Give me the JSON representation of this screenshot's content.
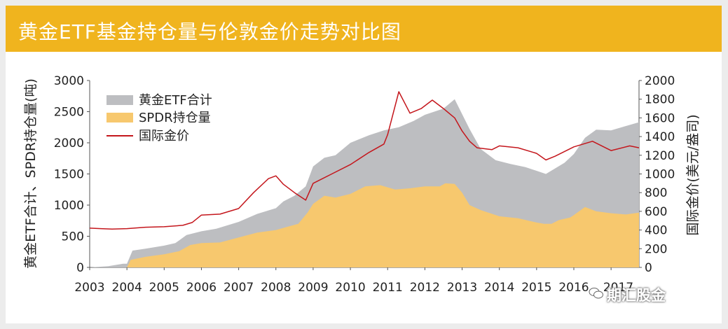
{
  "header": {
    "title": "黄金ETF基金持仓量与伦敦金价走势对比图"
  },
  "watermark": {
    "label": "期汇股金"
  },
  "chart_data": {
    "type": "area",
    "title": "黄金ETF基金持仓量与伦敦金价走势对比图",
    "ylabel_left": "黄金ETF合计、SPDR持仓量(吨)",
    "ylabel_right": "国际金价(美元/盎司)",
    "ylim_left": [
      0,
      3000
    ],
    "ylim_right": [
      0,
      2000
    ],
    "yticks_left": [
      "0",
      "500",
      "1000",
      "1500",
      "2000",
      "2500",
      "3000"
    ],
    "yticks_right": [
      "0",
      "200",
      "400",
      "600",
      "800",
      "1000",
      "1200",
      "1400",
      "1600",
      "1800",
      "2000"
    ],
    "xticks": [
      "2003",
      "2004",
      "2005",
      "2006",
      "2007",
      "2008",
      "2009",
      "2010",
      "2011",
      "2012",
      "2013",
      "2014",
      "2015",
      "2016",
      "2017"
    ],
    "xlim": [
      2003,
      2017.75
    ],
    "series": [
      {
        "name": "黄金ETF合计",
        "axis": "left",
        "color": "#bdbec1",
        "x": [
          2003.0,
          2003.5,
          2003.9,
          2004.0,
          2004.15,
          2004.5,
          2005.0,
          2005.3,
          2005.6,
          2006.0,
          2006.4,
          2007.0,
          2007.5,
          2008.0,
          2008.2,
          2008.5,
          2008.8,
          2009.0,
          2009.3,
          2009.6,
          2010.0,
          2010.5,
          2010.9,
          2011.3,
          2011.7,
          2012.0,
          2012.5,
          2012.8,
          2013.2,
          2013.5,
          2013.9,
          2014.3,
          2014.7,
          2015.0,
          2015.25,
          2015.5,
          2015.75,
          2016.0,
          2016.3,
          2016.6,
          2017.0,
          2017.4,
          2017.75
        ],
        "values": [
          0,
          20,
          60,
          60,
          270,
          300,
          350,
          390,
          520,
          580,
          620,
          730,
          860,
          950,
          1060,
          1150,
          1300,
          1620,
          1760,
          1800,
          2000,
          2120,
          2200,
          2250,
          2350,
          2450,
          2550,
          2700,
          2220,
          1900,
          1720,
          1660,
          1610,
          1550,
          1500,
          1590,
          1680,
          1820,
          2080,
          2210,
          2200,
          2270,
          2330
        ]
      },
      {
        "name": "SPDR持仓量",
        "axis": "left",
        "color": "#f7c86e",
        "x": [
          2003.0,
          2004.0,
          2004.1,
          2004.5,
          2005.0,
          2005.4,
          2005.7,
          2006.0,
          2006.5,
          2007.0,
          2007.5,
          2008.0,
          2008.3,
          2008.6,
          2008.85,
          2009.0,
          2009.3,
          2009.6,
          2010.0,
          2010.4,
          2010.8,
          2011.2,
          2011.6,
          2012.0,
          2012.4,
          2012.55,
          2012.8,
          2013.0,
          2013.2,
          2013.5,
          2014.0,
          2014.5,
          2015.0,
          2015.2,
          2015.4,
          2015.6,
          2015.9,
          2016.0,
          2016.3,
          2016.6,
          2017.0,
          2017.4,
          2017.75
        ],
        "values": [
          0,
          0,
          120,
          170,
          210,
          260,
          360,
          390,
          400,
          480,
          560,
          600,
          650,
          700,
          880,
          1020,
          1150,
          1120,
          1180,
          1300,
          1320,
          1250,
          1270,
          1300,
          1300,
          1350,
          1340,
          1200,
          1000,
          920,
          820,
          790,
          720,
          700,
          700,
          760,
          800,
          840,
          970,
          900,
          870,
          850,
          880
        ]
      },
      {
        "name": "国际金价",
        "axis": "right",
        "color": "#c4161c",
        "x": [
          2003.0,
          2003.3,
          2003.6,
          2004.0,
          2004.5,
          2005.0,
          2005.5,
          2005.75,
          2006.0,
          2006.5,
          2007.0,
          2007.4,
          2007.8,
          2008.0,
          2008.2,
          2008.5,
          2008.8,
          2009.0,
          2009.5,
          2010.0,
          2010.5,
          2010.9,
          2011.0,
          2011.3,
          2011.6,
          2011.9,
          2012.2,
          2012.5,
          2012.8,
          2013.0,
          2013.2,
          2013.4,
          2013.8,
          2014.0,
          2014.5,
          2015.0,
          2015.25,
          2015.5,
          2016.0,
          2016.5,
          2017.0,
          2017.5,
          2017.75
        ],
        "values": [
          420,
          415,
          410,
          415,
          430,
          435,
          450,
          480,
          560,
          570,
          630,
          800,
          950,
          980,
          890,
          800,
          720,
          900,
          1000,
          1100,
          1230,
          1320,
          1420,
          1880,
          1650,
          1700,
          1790,
          1700,
          1600,
          1460,
          1350,
          1280,
          1260,
          1300,
          1280,
          1220,
          1150,
          1190,
          1290,
          1350,
          1250,
          1300,
          1280
        ]
      }
    ],
    "legend_position": "top-left"
  }
}
